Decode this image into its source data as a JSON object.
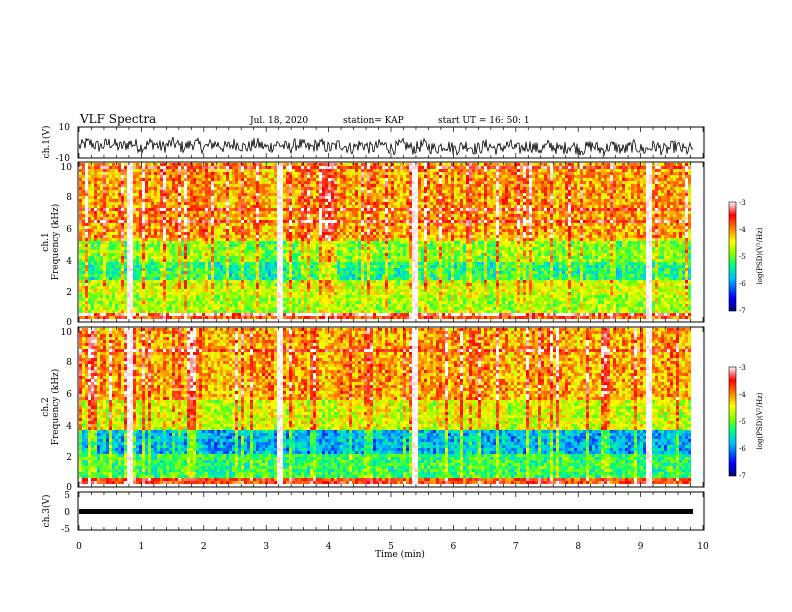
{
  "header": {
    "title": "VLF Spectra",
    "date": "Jul. 18, 2020",
    "station": "station= KAP",
    "start": "start UT =  16: 50: 1"
  },
  "colors": {
    "jet": [
      "#000080",
      "#0000ff",
      "#00c0ff",
      "#00ff80",
      "#80ff00",
      "#ffff00",
      "#ff8000",
      "#ff0000",
      "#ffffff"
    ],
    "frame": "#000000",
    "trace": "#000000"
  },
  "chart_data": [
    {
      "type": "line",
      "name": "ch1-waveform",
      "ylabel": "ch.1(V)",
      "ylim": [
        -10,
        10
      ],
      "yticks": [
        "10",
        "-10"
      ],
      "xlim": [
        0,
        10
      ],
      "note_values": "noisy waveform, roughly between -7 and 4 V, drifting from about -2 V early to about -4 V late"
    },
    {
      "type": "heatmap",
      "name": "ch1-spectrogram",
      "ylabel": "ch.1\nFrequency (kHz)",
      "xlim": [
        0,
        10
      ],
      "ylim": [
        0,
        10
      ],
      "yticks": [
        "0",
        "2",
        "4",
        "6",
        "8",
        "10"
      ],
      "colorbar": {
        "label": "log(PSD)(V²/Hz)",
        "ticks": [
          "-3",
          "-4",
          "-5",
          "-6",
          "-7"
        ],
        "range": [
          -7,
          -3
        ]
      },
      "bright_vertical_bursts_min": [
        0.82,
        3.2,
        5.4,
        9.15
      ],
      "band_levels": [
        {
          "f_range_khz": [
            0,
            0.6
          ],
          "logpsd": -3.8
        },
        {
          "f_range_khz": [
            0.6,
            1.6
          ],
          "logpsd": -4.8
        },
        {
          "f_range_khz": [
            1.6,
            2.4
          ],
          "logpsd": -4.6
        },
        {
          "f_range_khz": [
            2.4,
            3.8
          ],
          "logpsd": -5.3
        },
        {
          "f_range_khz": [
            3.8,
            5.2
          ],
          "logpsd": -4.9
        },
        {
          "f_range_khz": [
            5.2,
            10
          ],
          "logpsd": -4.1
        }
      ]
    },
    {
      "type": "heatmap",
      "name": "ch2-spectrogram",
      "ylabel": "ch.2\nFrequency (kHz)",
      "xlim": [
        0,
        10
      ],
      "ylim": [
        0,
        10
      ],
      "yticks": [
        "0",
        "2",
        "4",
        "6",
        "8",
        "10"
      ],
      "colorbar": {
        "label": "log(PSD)(V²/Hz)",
        "ticks": [
          "-3",
          "-4",
          "-5",
          "-6",
          "-7"
        ],
        "range": [
          -7,
          -3
        ]
      },
      "bright_vertical_bursts_min": [
        0.82,
        3.2,
        5.4,
        9.15
      ],
      "band_levels": [
        {
          "f_range_khz": [
            0,
            0.5
          ],
          "logpsd": -4.3
        },
        {
          "f_range_khz": [
            0.5,
            2.0
          ],
          "logpsd": -5.2
        },
        {
          "f_range_khz": [
            2.0,
            3.5
          ],
          "logpsd": -5.8
        },
        {
          "f_range_khz": [
            3.5,
            5.5
          ],
          "logpsd": -4.6
        },
        {
          "f_range_khz": [
            5.5,
            10
          ],
          "logpsd": -4.1
        }
      ]
    },
    {
      "type": "line",
      "name": "ch3-waveform",
      "ylabel": "ch.3(V)",
      "ylim": [
        -5,
        5
      ],
      "yticks": [
        "5",
        "0",
        "-5"
      ],
      "xlim": [
        0,
        10
      ],
      "xlabel": "Time (min)",
      "xticks": [
        "0",
        "1",
        "2",
        "3",
        "4",
        "5",
        "6",
        "7",
        "8",
        "9",
        "10"
      ],
      "constant_value_v": -0.5
    }
  ]
}
